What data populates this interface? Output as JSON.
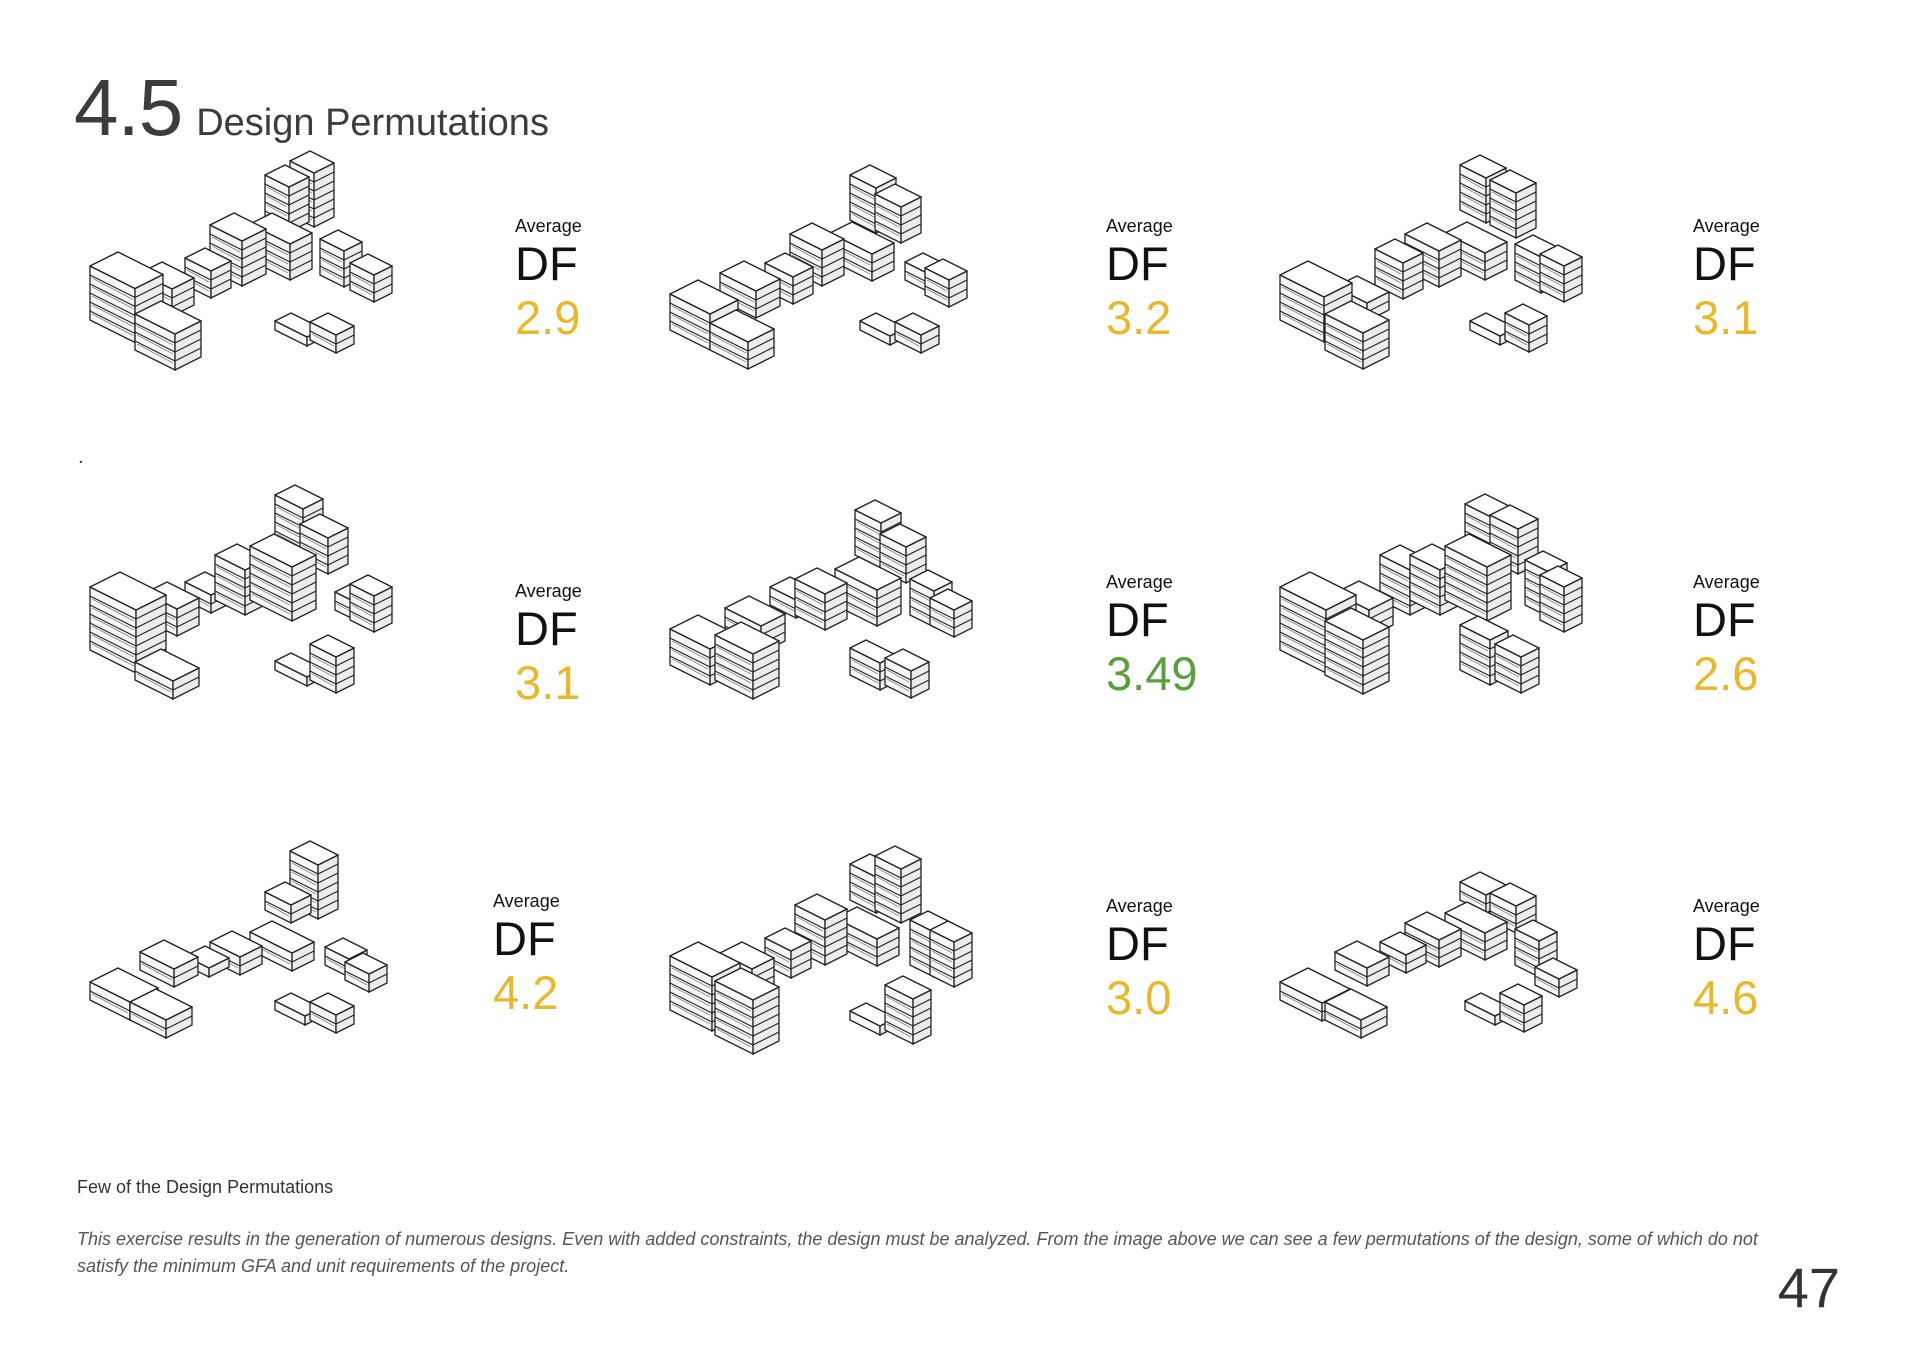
{
  "header": {
    "section_number": "4.5",
    "title": "Design Permutations"
  },
  "stray_mark": ".",
  "metric_label_top": "Average",
  "metric_label_main": "DF",
  "colors": {
    "good": "#5b9e3d",
    "warning": "#e9b72a"
  },
  "permutations": [
    {
      "value": "2.9",
      "status": "warning"
    },
    {
      "value": "3.2",
      "status": "warning"
    },
    {
      "value": "3.1",
      "status": "warning"
    },
    {
      "value": "3.1",
      "status": "warning"
    },
    {
      "value": "3.49",
      "status": "good"
    },
    {
      "value": "2.6",
      "status": "warning"
    },
    {
      "value": "4.2",
      "status": "warning"
    },
    {
      "value": "3.0",
      "status": "warning"
    },
    {
      "value": "4.6",
      "status": "warning"
    }
  ],
  "caption": "Few of the Design Permutations",
  "description": "This exercise results in the generation of numerous designs. Even with added constraints, the design must be analyzed. From the image above we can see a few permutations of the design, some of which do not satisfy the minimum GFA and unit requirements of the project.",
  "page_number": "47"
}
